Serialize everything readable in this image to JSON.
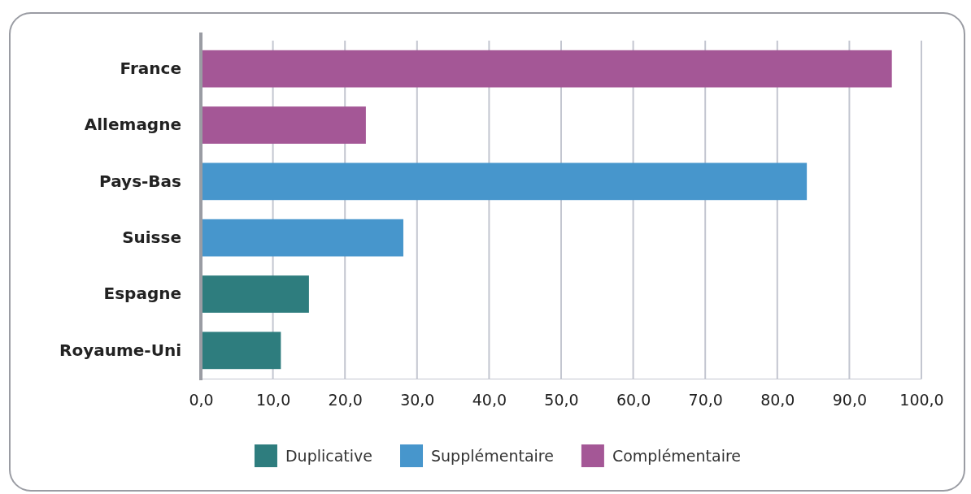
{
  "chart_data": {
    "type": "bar",
    "orientation": "horizontal",
    "categories": [
      "France",
      "Allemagne",
      "Pays-Bas",
      "Suisse",
      "Espagne",
      "Royaume-Uni"
    ],
    "series": [
      {
        "name": "Duplicative",
        "color": "#2e7d7e",
        "values": [
          null,
          null,
          null,
          null,
          15.0,
          11.1
        ]
      },
      {
        "name": "Supplémentaire",
        "color": "#4796cc",
        "values": [
          null,
          null,
          84.1,
          28.1,
          null,
          null
        ]
      },
      {
        "name": "Complémentaire",
        "color": "#a45796",
        "values": [
          95.9,
          22.9,
          null,
          null,
          null,
          null
        ]
      }
    ],
    "xlim": [
      0,
      100
    ],
    "xticks": [
      {
        "value": 0,
        "label": "0,0"
      },
      {
        "value": 10,
        "label": "10,0"
      },
      {
        "value": 20,
        "label": "20,0"
      },
      {
        "value": 30,
        "label": "30,0"
      },
      {
        "value": 40,
        "label": "40,0"
      },
      {
        "value": 50,
        "label": "50,0"
      },
      {
        "value": 60,
        "label": "60,0"
      },
      {
        "value": 70,
        "label": "70,0"
      },
      {
        "value": 80,
        "label": "80,0"
      },
      {
        "value": 90,
        "label": "90,0"
      },
      {
        "value": 100,
        "label": "100,0"
      }
    ],
    "grid": "x",
    "legend": "bottom"
  }
}
